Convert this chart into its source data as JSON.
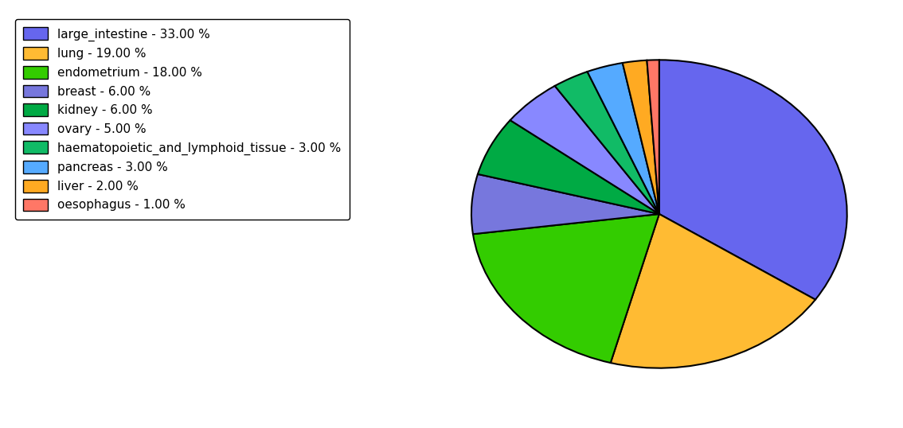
{
  "labels": [
    "large_intestine",
    "lung",
    "endometrium",
    "breast",
    "kidney",
    "ovary",
    "haematopoietic_and_lymphoid_tissue",
    "pancreas",
    "liver",
    "oesophagus"
  ],
  "values": [
    33,
    19,
    18,
    6,
    6,
    5,
    3,
    3,
    2,
    1
  ],
  "colors": [
    "#6666ee",
    "#ffbb33",
    "#33cc00",
    "#7777dd",
    "#00aa44",
    "#8888ff",
    "#11bb66",
    "#55aaff",
    "#ffaa22",
    "#ff7766"
  ],
  "legend_labels": [
    "large_intestine - 33.00 %",
    "lung - 19.00 %",
    "endometrium - 18.00 %",
    "breast - 6.00 %",
    "kidney - 6.00 %",
    "ovary - 5.00 %",
    "haematopoietic_and_lymphoid_tissue - 3.00 %",
    "pancreas - 3.00 %",
    "liver - 2.00 %",
    "oesophagus - 1.00 %"
  ],
  "figsize": [
    11.34,
    5.38
  ],
  "dpi": 100,
  "legend_fontsize": 11,
  "edgecolor": "black",
  "linewidth": 1.5,
  "startangle": 90
}
